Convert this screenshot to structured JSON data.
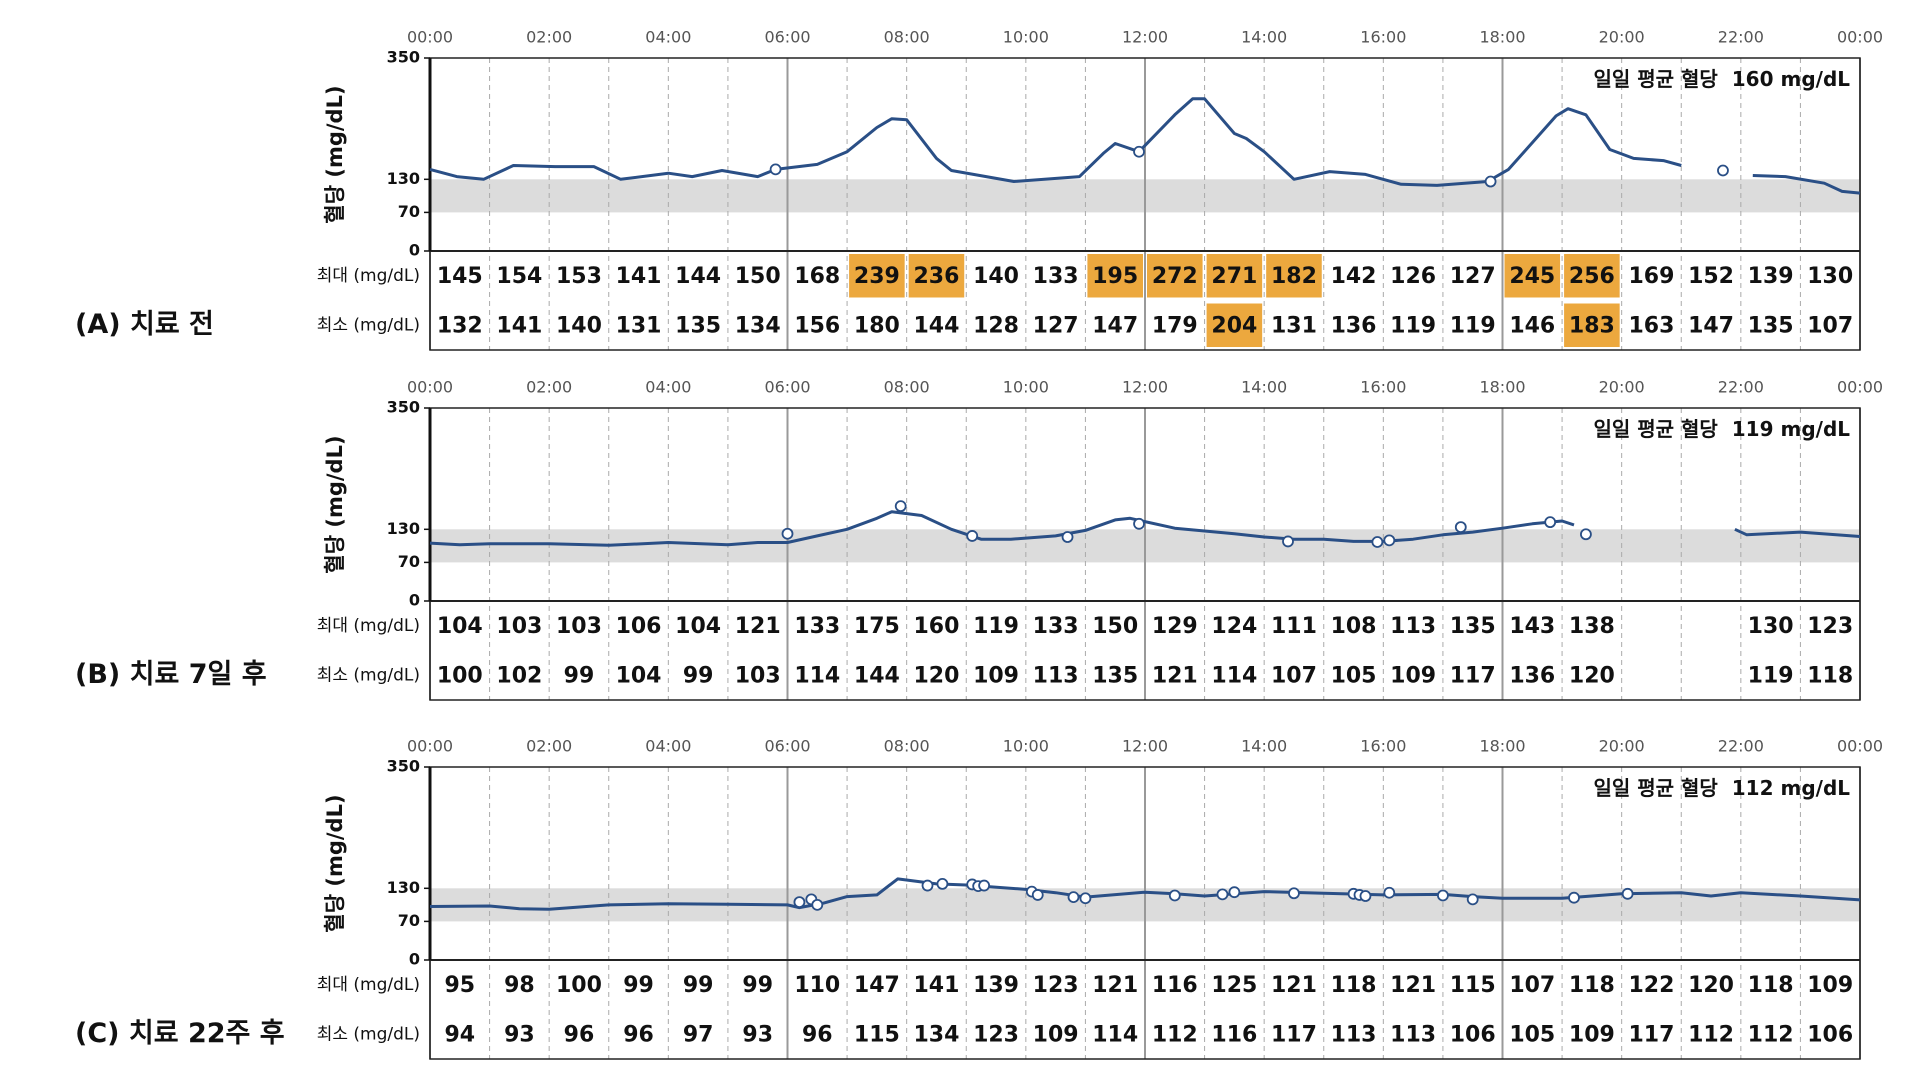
{
  "chart_data": [
    {
      "type": "line",
      "panel_label": "(A) 치료 전",
      "y_label": "혈당 (mg/dL)",
      "average_label": "일일 평균 혈당",
      "average_value": "160 mg/dL",
      "color": "#2a4f86",
      "band_color": "#dcdcdc",
      "highlight_color": "#eca83e",
      "xlim": [
        0,
        24
      ],
      "xticks": [
        {
          "value": 0,
          "label": "00:00"
        },
        {
          "value": 2,
          "label": "02:00"
        },
        {
          "value": 4,
          "label": "04:00"
        },
        {
          "value": 6,
          "label": "06:00"
        },
        {
          "value": 8,
          "label": "08:00"
        },
        {
          "value": 10,
          "label": "10:00"
        },
        {
          "value": 12,
          "label": "12:00"
        },
        {
          "value": 14,
          "label": "14:00"
        },
        {
          "value": 16,
          "label": "16:00"
        },
        {
          "value": 18,
          "label": "18:00"
        },
        {
          "value": 20,
          "label": "20:00"
        },
        {
          "value": 22,
          "label": "22:00"
        },
        {
          "value": 24,
          "label": "00:00"
        }
      ],
      "ylim": [
        0,
        350
      ],
      "yticks": [
        0,
        70,
        130,
        350
      ],
      "target_range": [
        70,
        130
      ],
      "x": [
        0,
        0.45,
        0.9,
        1.4,
        2.1,
        2.75,
        3.2,
        4,
        4.4,
        4.9,
        5.5,
        5.8,
        6.5,
        7,
        7.5,
        7.75,
        8,
        8.5,
        8.75,
        9.8,
        10.9,
        11.3,
        11.5,
        11.9,
        12.5,
        12.8,
        13,
        13.5,
        13.7,
        14,
        14.5,
        15.1,
        15.7,
        16.3,
        16.9,
        17.75,
        18.1,
        18.9,
        19.1,
        19.4,
        19.8,
        20.2,
        20.7,
        21,
        null,
        22.2,
        22.75,
        23.4,
        23.7,
        24
      ],
      "values": [
        148,
        135,
        130,
        155,
        153,
        153,
        130,
        141,
        135,
        146,
        135,
        148,
        157,
        180,
        224,
        240,
        238,
        168,
        146,
        126,
        135,
        177,
        195,
        180,
        247,
        276,
        276,
        213,
        204,
        180,
        130,
        144,
        139,
        121,
        119,
        126,
        148,
        245,
        258,
        247,
        184,
        168,
        164,
        155,
        null,
        137,
        135,
        123,
        108,
        105
      ],
      "points": {
        "x": [
          5.8,
          11.9,
          17.8,
          21.7
        ],
        "values": [
          148,
          180,
          126,
          146
        ]
      },
      "table": {
        "rows": [
          {
            "label": "최대 (mg/dL)",
            "values": [
              145,
              154,
              153,
              141,
              144,
              150,
              168,
              239,
              236,
              140,
              133,
              195,
              272,
              271,
              182,
              142,
              126,
              127,
              245,
              256,
              169,
              152,
              139,
              130
            ],
            "highlight": [
              7,
              8,
              11,
              12,
              13,
              14,
              18,
              19
            ]
          },
          {
            "label": "최소 (mg/dL)",
            "values": [
              132,
              141,
              140,
              131,
              135,
              134,
              156,
              180,
              144,
              128,
              127,
              147,
              179,
              204,
              131,
              136,
              119,
              119,
              146,
              183,
              163,
              147,
              135,
              107
            ],
            "highlight": [
              13,
              19
            ]
          }
        ]
      }
    },
    {
      "type": "line",
      "panel_label": "(B) 치료 7일 후",
      "y_label": "혈당 (mg/dL)",
      "average_label": "일일 평균 혈당",
      "average_value": "119 mg/dL",
      "color": "#2a4f86",
      "band_color": "#dcdcdc",
      "highlight_color": "#eca83e",
      "xlim": [
        0,
        24
      ],
      "xticks": [
        {
          "value": 0,
          "label": "00:00"
        },
        {
          "value": 2,
          "label": "02:00"
        },
        {
          "value": 4,
          "label": "04:00"
        },
        {
          "value": 6,
          "label": "06:00"
        },
        {
          "value": 8,
          "label": "08:00"
        },
        {
          "value": 10,
          "label": "10:00"
        },
        {
          "value": 12,
          "label": "12:00"
        },
        {
          "value": 14,
          "label": "14:00"
        },
        {
          "value": 16,
          "label": "16:00"
        },
        {
          "value": 18,
          "label": "18:00"
        },
        {
          "value": 20,
          "label": "20:00"
        },
        {
          "value": 22,
          "label": "22:00"
        },
        {
          "value": 24,
          "label": "00:00"
        }
      ],
      "ylim": [
        0,
        350
      ],
      "yticks": [
        0,
        70,
        130,
        350
      ],
      "target_range": [
        70,
        130
      ],
      "x": [
        0,
        0.5,
        1,
        2,
        3,
        4,
        5,
        5.5,
        6,
        6.5,
        7,
        7.5,
        7.75,
        8.25,
        8.75,
        9.25,
        9.75,
        10.5,
        11,
        11.5,
        11.75,
        12.5,
        13.5,
        14,
        14.5,
        15,
        15.5,
        16,
        16.5,
        17,
        17.5,
        18,
        18.5,
        19,
        19.2,
        null,
        21.9,
        22.1,
        23,
        24
      ],
      "values": [
        105,
        102,
        104,
        104,
        101,
        106,
        102,
        106,
        106,
        118,
        130,
        150,
        162,
        155,
        130,
        112,
        112,
        118,
        128,
        147,
        150,
        132,
        122,
        116,
        112,
        112,
        108,
        108,
        112,
        120,
        125,
        132,
        140,
        145,
        138,
        null,
        130,
        120,
        125,
        117
      ],
      "points": {
        "x": [
          6,
          7.9,
          9.1,
          10.7,
          11.9,
          14.4,
          15.9,
          16.1,
          17.3,
          18.8,
          19.4
        ],
        "values": [
          122,
          172,
          118,
          116,
          140,
          108,
          107,
          110,
          134,
          143,
          121
        ]
      },
      "table": {
        "rows": [
          {
            "label": "최대 (mg/dL)",
            "values": [
              104,
              103,
              103,
              106,
              104,
              121,
              133,
              175,
              160,
              119,
              133,
              150,
              129,
              124,
              111,
              108,
              113,
              135,
              143,
              138,
              null,
              null,
              130,
              123
            ],
            "highlight": []
          },
          {
            "label": "최소 (mg/dL)",
            "values": [
              100,
              102,
              99,
              104,
              99,
              103,
              114,
              144,
              120,
              109,
              113,
              135,
              121,
              114,
              107,
              105,
              109,
              117,
              136,
              120,
              null,
              null,
              119,
              118
            ],
            "highlight": []
          }
        ]
      }
    },
    {
      "type": "line",
      "panel_label": "(C) 치료 22주 후",
      "y_label": "혈당 (mg/dL)",
      "average_label": "일일 평균 혈당",
      "average_value": "112 mg/dL",
      "color": "#2a4f86",
      "band_color": "#dcdcdc",
      "highlight_color": "#eca83e",
      "xlim": [
        0,
        24
      ],
      "xticks": [
        {
          "value": 0,
          "label": "00:00"
        },
        {
          "value": 2,
          "label": "02:00"
        },
        {
          "value": 4,
          "label": "04:00"
        },
        {
          "value": 6,
          "label": "06:00"
        },
        {
          "value": 8,
          "label": "08:00"
        },
        {
          "value": 10,
          "label": "10:00"
        },
        {
          "value": 12,
          "label": "12:00"
        },
        {
          "value": 14,
          "label": "14:00"
        },
        {
          "value": 16,
          "label": "16:00"
        },
        {
          "value": 18,
          "label": "18:00"
        },
        {
          "value": 20,
          "label": "20:00"
        },
        {
          "value": 22,
          "label": "22:00"
        },
        {
          "value": 24,
          "label": "00:00"
        }
      ],
      "ylim": [
        0,
        350
      ],
      "yticks": [
        0,
        70,
        130,
        350
      ],
      "target_range": [
        70,
        130
      ],
      "x": [
        0,
        1,
        1.5,
        2,
        3,
        4,
        5,
        6,
        6.2,
        6.6,
        7,
        7.5,
        7.85,
        8.5,
        9,
        10,
        10.5,
        11,
        12,
        12.5,
        13,
        14,
        15,
        16,
        17,
        17.5,
        18,
        19,
        20,
        21,
        21.5,
        22,
        23,
        24
      ],
      "values": [
        97,
        98,
        93,
        92,
        100,
        102,
        101,
        100,
        95,
        103,
        115,
        118,
        147,
        138,
        136,
        128,
        122,
        114,
        123,
        120,
        116,
        124,
        121,
        118,
        119,
        115,
        112,
        112,
        120,
        122,
        116,
        122,
        116,
        109
      ],
      "points": {
        "x": [
          6.2,
          6.4,
          6.5,
          8.35,
          8.6,
          9.1,
          9.2,
          9.3,
          10.1,
          10.2,
          10.8,
          11,
          12.5,
          13.3,
          13.5,
          14.5,
          15.5,
          15.6,
          15.7,
          16.1,
          17,
          17.5,
          19.2,
          20.1
        ],
        "values": [
          105,
          110,
          100,
          135,
          138,
          137,
          134,
          135,
          124,
          118,
          114,
          112,
          117,
          119,
          123,
          121,
          120,
          118,
          116,
          122,
          117,
          110,
          113,
          120
        ]
      },
      "table": {
        "rows": [
          {
            "label": "최대 (mg/dL)",
            "values": [
              95,
              98,
              100,
              99,
              99,
              99,
              110,
              147,
              141,
              139,
              123,
              121,
              116,
              125,
              121,
              118,
              121,
              115,
              107,
              118,
              122,
              120,
              118,
              109
            ],
            "highlight": []
          },
          {
            "label": "최소 (mg/dL)",
            "values": [
              94,
              93,
              96,
              96,
              97,
              93,
              96,
              115,
              134,
              123,
              109,
              114,
              112,
              116,
              117,
              113,
              113,
              106,
              105,
              109,
              117,
              112,
              112,
              106
            ],
            "highlight": []
          }
        ]
      }
    }
  ]
}
